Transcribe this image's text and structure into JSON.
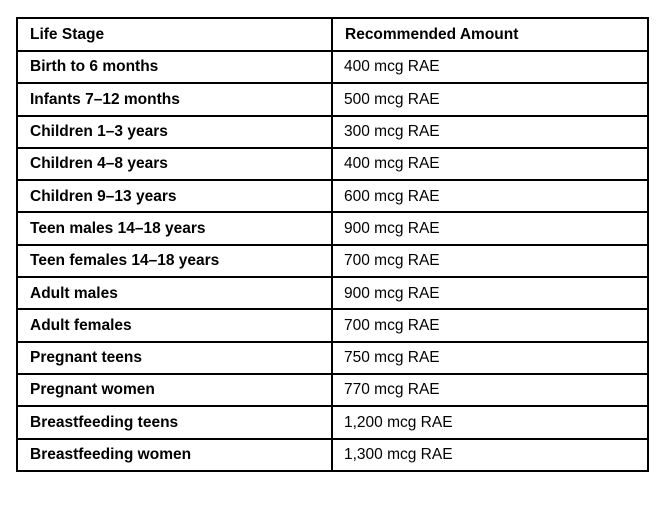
{
  "page": {
    "background_color": "#ffffff",
    "text_color": "#000000",
    "border_color": "#000000"
  },
  "table": {
    "headers": {
      "life_stage": "Life Stage",
      "amount": "Recommended Amount"
    },
    "rows": [
      {
        "stage": "Birth to 6 months",
        "amount": "400 mcg RAE"
      },
      {
        "stage": "Infants 7–12 months",
        "amount": "500 mcg RAE"
      },
      {
        "stage": "Children 1–3 years",
        "amount": "300 mcg RAE"
      },
      {
        "stage": "Children 4–8 years",
        "amount": "400 mcg RAE"
      },
      {
        "stage": "Children 9–13 years",
        "amount": "600 mcg RAE"
      },
      {
        "stage": "Teen males 14–18 years",
        "amount": "900 mcg RAE"
      },
      {
        "stage": "Teen females 14–18 years",
        "amount": "700 mcg RAE"
      },
      {
        "stage": "Adult males",
        "amount": "900 mcg RAE"
      },
      {
        "stage": "Adult females",
        "amount": "700 mcg RAE"
      },
      {
        "stage": "Pregnant teens",
        "amount": "750 mcg RAE"
      },
      {
        "stage": "Pregnant women",
        "amount": "770 mcg RAE"
      },
      {
        "stage": "Breastfeeding teens",
        "amount": "1,200 mcg RAE"
      },
      {
        "stage": "Breastfeeding women",
        "amount": "1,300 mcg RAE"
      }
    ]
  }
}
